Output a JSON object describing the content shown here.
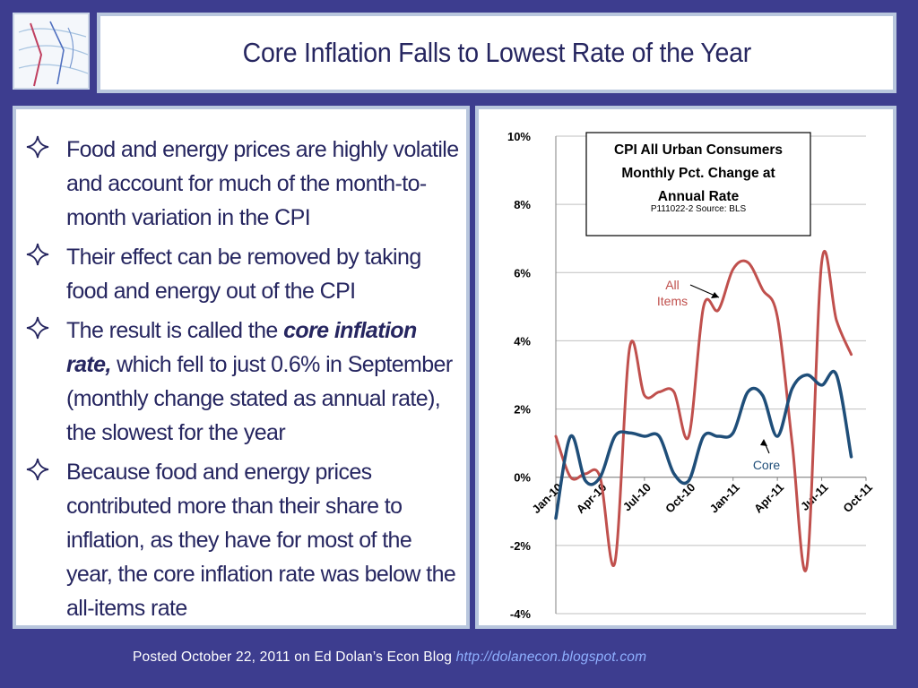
{
  "slide": {
    "title": "Core Inflation Falls to Lowest Rate of the Year",
    "bullets": [
      {
        "parts": [
          {
            "text": "Food and energy prices are highly volatile and account for much of the month-to-month variation in the CPI"
          }
        ]
      },
      {
        "parts": [
          {
            "text": "Their effect can be removed by taking food and energy out of the CPI"
          }
        ]
      },
      {
        "parts": [
          {
            "text": "The result is called the "
          },
          {
            "text": "core inflation rate,",
            "emphasis": true
          },
          {
            "text": " which fell to just 0.6% in September (monthly change stated as annual rate), the slowest for the year"
          }
        ]
      },
      {
        "parts": [
          {
            "text": "Because food and energy prices contributed more than their share to inflation, as they have for most of the year, the core inflation rate was below the all-items rate"
          }
        ]
      }
    ],
    "footer": {
      "text": "Posted October 22, 2011 on Ed Dolan’s Econ Blog ",
      "url": "http://dolanecon.blogspot.com"
    }
  },
  "colors": {
    "background": "#3d3d8f",
    "title_text": "#262660",
    "all_items_series": "#c0504d",
    "core_series": "#1f4e79",
    "footer_url": "#8fb0ff"
  },
  "icons": {
    "bullet": "four-point-star-icon",
    "logo": "weather-map-logo-icon"
  },
  "chart_data": {
    "type": "line",
    "title_lines": [
      "CPI All Urban Consumers",
      "Monthly Pct. Change at",
      "Annual Rate"
    ],
    "source_note": "P111022-2 Source: BLS",
    "ylim": [
      -4,
      10
    ],
    "yticks": [
      -4,
      -2,
      0,
      2,
      4,
      6,
      8,
      10
    ],
    "ytick_labels": [
      "-4%",
      "-2%",
      "0%",
      "2%",
      "4%",
      "6%",
      "8%",
      "10%"
    ],
    "grid": true,
    "x": [
      "Jan-10",
      "Feb-10",
      "Mar-10",
      "Apr-10",
      "May-10",
      "Jun-10",
      "Jul-10",
      "Aug-10",
      "Sep-10",
      "Oct-10",
      "Nov-10",
      "Dec-10",
      "Jan-11",
      "Feb-11",
      "Mar-11",
      "Apr-11",
      "May-11",
      "Jun-11",
      "Jul-11",
      "Aug-11",
      "Sep-11"
    ],
    "xtick_labels": [
      "Jan-10",
      "Apr-10",
      "Jul-10",
      "Oct-10",
      "Jan-11",
      "Apr-11",
      "Jul-11",
      "Oct-11"
    ],
    "xtick_positions": [
      0,
      3,
      6,
      9,
      12,
      15,
      18,
      21
    ],
    "series": [
      {
        "key": "all",
        "values": [
          1.2,
          0.0,
          0.1,
          0.0,
          -2.5,
          3.8,
          2.4,
          2.5,
          2.5,
          1.2,
          5.0,
          4.9,
          6.1,
          6.3,
          5.5,
          4.7,
          1.0,
          -2.6,
          6.3,
          4.6,
          3.6
        ]
      },
      {
        "key": "core",
        "values": [
          -1.2,
          1.2,
          -0.1,
          0.0,
          1.2,
          1.3,
          1.2,
          1.2,
          0.1,
          -0.1,
          1.2,
          1.2,
          1.3,
          2.5,
          2.4,
          1.2,
          2.6,
          3.0,
          2.7,
          3.0,
          0.6
        ]
      }
    ],
    "annotations": [
      {
        "text_lines": [
          "All",
          "Items"
        ],
        "series": "all"
      },
      {
        "text_lines": [
          "Core"
        ],
        "series": "core"
      }
    ]
  }
}
